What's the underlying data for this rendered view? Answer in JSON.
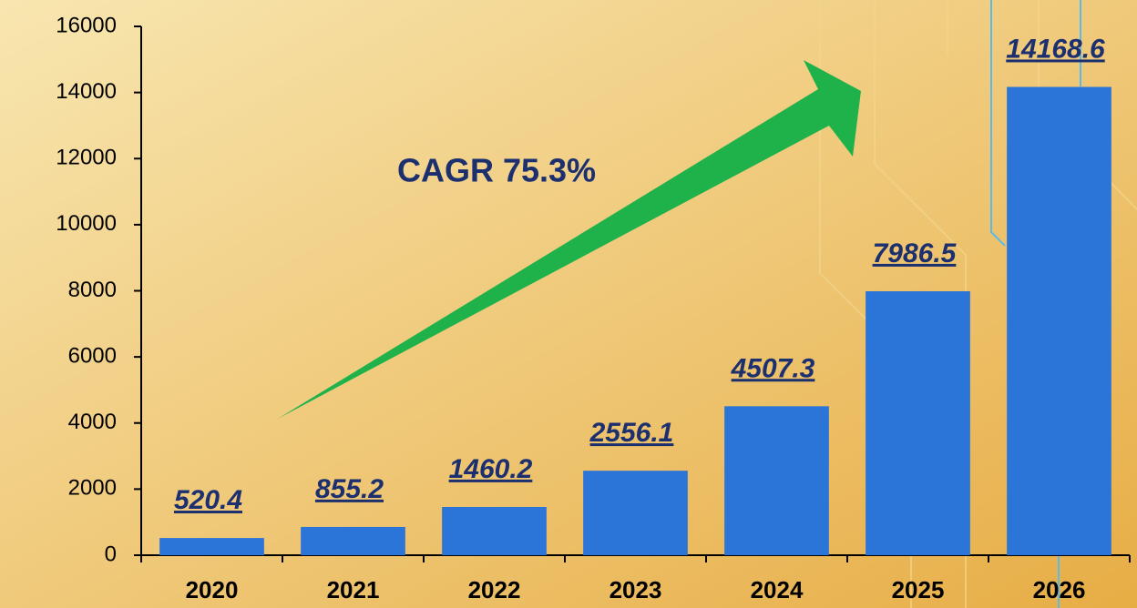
{
  "chart_data": {
    "type": "bar",
    "categories": [
      "2020",
      "2021",
      "2022",
      "2023",
      "2024",
      "2025",
      "2026"
    ],
    "values": [
      520.4,
      855.2,
      1460.2,
      2556.1,
      4507.3,
      7986.5,
      14168.6
    ],
    "color": "#2b74d8",
    "ylim": [
      0,
      16000
    ],
    "yticks": [
      0,
      2000,
      4000,
      6000,
      8000,
      10000,
      12000,
      14000,
      16000
    ],
    "annotation": "CAGR 75.3%"
  }
}
